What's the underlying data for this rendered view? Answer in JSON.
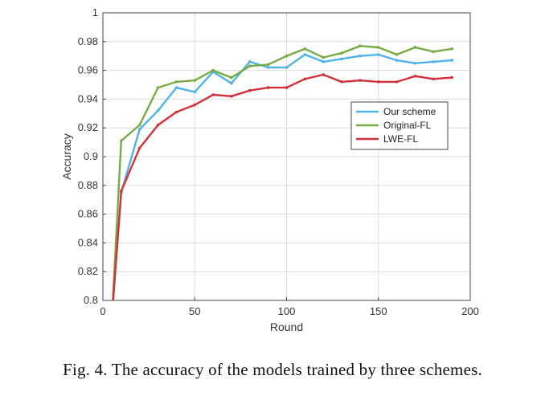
{
  "caption": "Fig. 4.  The accuracy of the models trained by three schemes.",
  "chart_data": {
    "type": "line",
    "title": "",
    "xlabel": "Round",
    "ylabel": "Accuracy",
    "xlim": [
      0,
      200
    ],
    "ylim": [
      0.8,
      1.0
    ],
    "xticks": [
      0,
      50,
      100,
      150,
      200
    ],
    "yticks": [
      0.8,
      0.82,
      0.84,
      0.86,
      0.88,
      0.9,
      0.92,
      0.94,
      0.96,
      0.98,
      1
    ],
    "grid": true,
    "legend_position": "right-middle",
    "x": [
      5,
      10,
      20,
      30,
      40,
      50,
      60,
      70,
      80,
      90,
      100,
      110,
      120,
      130,
      140,
      150,
      160,
      170,
      180,
      190
    ],
    "series": [
      {
        "name": "Our scheme",
        "color": "#4fb3e6",
        "values": [
          0.79,
          0.875,
          0.919,
          0.932,
          0.948,
          0.945,
          0.959,
          0.951,
          0.966,
          0.962,
          0.962,
          0.971,
          0.966,
          0.968,
          0.97,
          0.971,
          0.967,
          0.965,
          0.966,
          0.967
        ]
      },
      {
        "name": "Original-FL",
        "color": "#77ab43",
        "values": [
          0.79,
          0.911,
          0.922,
          0.948,
          0.952,
          0.953,
          0.96,
          0.955,
          0.963,
          0.964,
          0.97,
          0.975,
          0.969,
          0.972,
          0.977,
          0.976,
          0.971,
          0.976,
          0.973,
          0.975
        ]
      },
      {
        "name": "LWE-FL",
        "color": "#d2313a",
        "values": [
          0.79,
          0.876,
          0.906,
          0.922,
          0.931,
          0.936,
          0.943,
          0.942,
          0.946,
          0.948,
          0.948,
          0.954,
          0.957,
          0.952,
          0.953,
          0.952,
          0.952,
          0.956,
          0.954,
          0.955
        ]
      }
    ]
  }
}
